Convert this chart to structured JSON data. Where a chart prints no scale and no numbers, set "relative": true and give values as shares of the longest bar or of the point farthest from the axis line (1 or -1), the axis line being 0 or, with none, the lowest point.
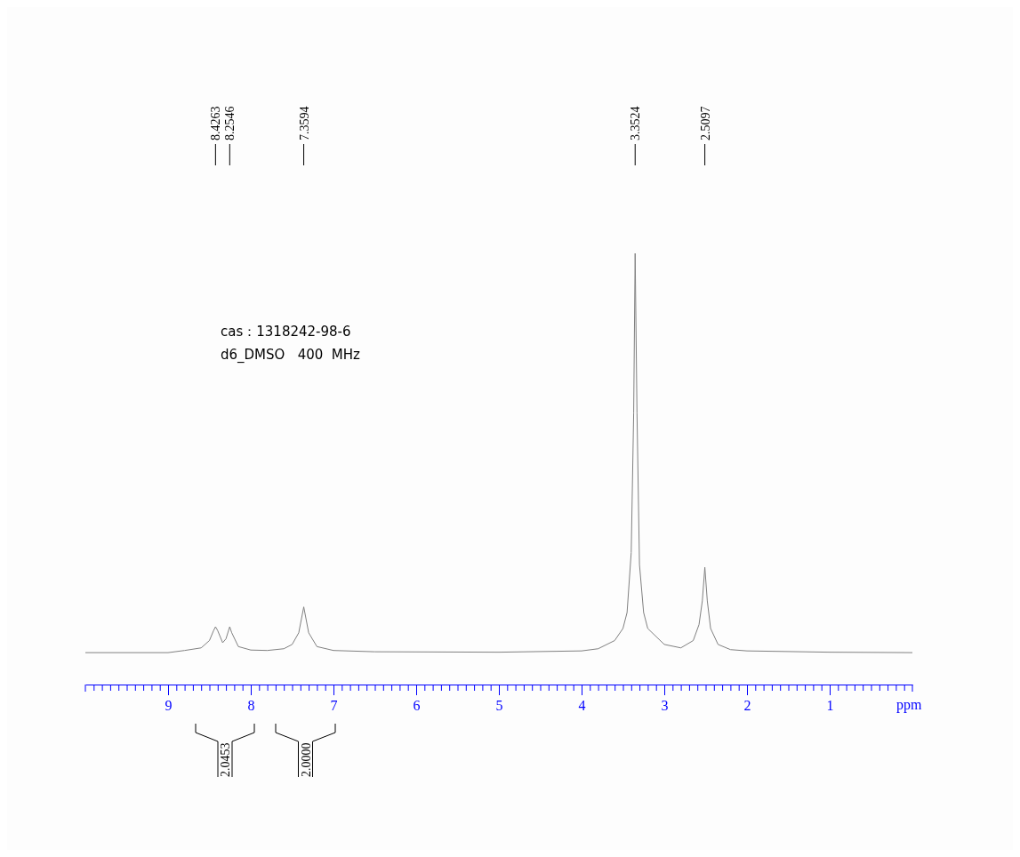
{
  "chart_data": {
    "type": "line",
    "relative": true,
    "xlabel": "ppm",
    "xlim": [
      10,
      0
    ],
    "xticks": [
      {
        "value": 9.9,
        "label": null
      },
      {
        "value": 9.8,
        "label": null
      },
      {
        "value": 9.7,
        "label": null
      },
      {
        "value": 9.6,
        "label": null
      },
      {
        "value": 9.5,
        "label": null
      },
      {
        "value": 9.4,
        "label": null
      },
      {
        "value": 9.3,
        "label": null
      },
      {
        "value": 9.2,
        "label": null
      },
      {
        "value": 9.1,
        "label": null
      },
      9,
      {
        "value": 8.9,
        "label": null
      },
      {
        "value": 8.8,
        "label": null
      },
      {
        "value": 8.7,
        "label": null
      },
      {
        "value": 8.6,
        "label": null
      },
      {
        "value": 8.5,
        "label": null
      },
      {
        "value": 8.4,
        "label": null
      },
      {
        "value": 8.3,
        "label": null
      },
      {
        "value": 8.2,
        "label": null
      },
      {
        "value": 8.1,
        "label": null
      },
      8,
      {
        "value": 7.9,
        "label": null
      },
      {
        "value": 7.8,
        "label": null
      },
      {
        "value": 7.7,
        "label": null
      },
      {
        "value": 7.6,
        "label": null
      },
      {
        "value": 7.5,
        "label": null
      },
      {
        "value": 7.4,
        "label": null
      },
      {
        "value": 7.3,
        "label": null
      },
      {
        "value": 7.2,
        "label": null
      },
      {
        "value": 7.1,
        "label": null
      },
      7,
      {
        "value": 6.9,
        "label": null
      },
      {
        "value": 6.8,
        "label": null
      },
      {
        "value": 6.7,
        "label": null
      },
      {
        "value": 6.6,
        "label": null
      },
      {
        "value": 6.5,
        "label": null
      },
      {
        "value": 6.4,
        "label": null
      },
      {
        "value": 6.3,
        "label": null
      },
      {
        "value": 6.2,
        "label": null
      },
      {
        "value": 6.1,
        "label": null
      },
      6,
      {
        "value": 5.9,
        "label": null
      },
      {
        "value": 5.8,
        "label": null
      },
      {
        "value": 5.7,
        "label": null
      },
      {
        "value": 5.6,
        "label": null
      },
      {
        "value": 5.5,
        "label": null
      },
      {
        "value": 5.4,
        "label": null
      },
      {
        "value": 5.3,
        "label": null
      },
      {
        "value": 5.2,
        "label": null
      },
      {
        "value": 5.1,
        "label": null
      },
      5,
      {
        "value": 4.9,
        "label": null
      },
      {
        "value": 4.8,
        "label": null
      },
      {
        "value": 4.7,
        "label": null
      },
      {
        "value": 4.6,
        "label": null
      },
      {
        "value": 4.5,
        "label": null
      },
      {
        "value": 4.4,
        "label": null
      },
      {
        "value": 4.3,
        "label": null
      },
      {
        "value": 4.2,
        "label": null
      },
      {
        "value": 4.1,
        "label": null
      },
      4,
      {
        "value": 3.9,
        "label": null
      },
      {
        "value": 3.8,
        "label": null
      },
      {
        "value": 3.7,
        "label": null
      },
      {
        "value": 3.6,
        "label": null
      },
      {
        "value": 3.5,
        "label": null
      },
      {
        "value": 3.4,
        "label": null
      },
      {
        "value": 3.3,
        "label": null
      },
      {
        "value": 3.2,
        "label": null
      },
      {
        "value": 3.1,
        "label": null
      },
      3,
      {
        "value": 2.9,
        "label": null
      },
      {
        "value": 2.8,
        "label": null
      },
      {
        "value": 2.7,
        "label": null
      },
      {
        "value": 2.6,
        "label": null
      },
      {
        "value": 2.5,
        "label": null
      },
      {
        "value": 2.4,
        "label": null
      },
      {
        "value": 2.3,
        "label": null
      },
      {
        "value": 2.2,
        "label": null
      },
      {
        "value": 2.1,
        "label": null
      },
      2,
      {
        "value": 1.9,
        "label": null
      },
      {
        "value": 1.8,
        "label": null
      },
      {
        "value": 1.7,
        "label": null
      },
      {
        "value": 1.6,
        "label": null
      },
      {
        "value": 1.5,
        "label": null
      },
      {
        "value": 1.4,
        "label": null
      },
      {
        "value": 1.3,
        "label": null
      },
      {
        "value": 1.2,
        "label": null
      },
      {
        "value": 1.1,
        "label": null
      },
      1,
      {
        "value": 0.9,
        "label": null
      },
      {
        "value": 0.8,
        "label": null
      },
      {
        "value": 0.7,
        "label": null
      },
      {
        "value": 0.6,
        "label": null
      },
      {
        "value": 0.5,
        "label": null
      },
      {
        "value": 0.4,
        "label": null
      },
      {
        "value": 0.3,
        "label": null
      },
      {
        "value": 0.2,
        "label": null
      },
      {
        "value": 0.1,
        "label": null
      }
    ],
    "x": [
      10,
      9,
      8.8,
      8.6,
      8.5,
      8.45,
      8.4263,
      8.4,
      8.34,
      8.3,
      8.2546,
      8.23,
      8.15,
      8,
      7.8,
      7.6,
      7.5,
      7.42,
      7.3594,
      7.3,
      7.2,
      7,
      6.5,
      5,
      4,
      3.8,
      3.6,
      3.5,
      3.45,
      3.4,
      3.37,
      3.3524,
      3.33,
      3.3,
      3.25,
      3.2,
      3,
      2.8,
      2.65,
      2.58,
      2.54,
      2.5097,
      2.48,
      2.44,
      2.35,
      2.2,
      2,
      1,
      0
    ],
    "series": [
      {
        "color": "#808080",
        "values": [
          0.074,
          0.074,
          0.079,
          0.085,
          0.102,
          0.125,
          0.134,
          0.125,
          0.097,
          0.106,
          0.134,
          0.12,
          0.088,
          0.08,
          0.079,
          0.083,
          0.093,
          0.12,
          0.18,
          0.12,
          0.088,
          0.079,
          0.076,
          0.075,
          0.078,
          0.083,
          0.102,
          0.13,
          0.167,
          0.306,
          0.63,
          1,
          0.63,
          0.278,
          0.167,
          0.13,
          0.093,
          0.085,
          0.102,
          0.139,
          0.194,
          0.272,
          0.194,
          0.13,
          0.093,
          0.081,
          0.078,
          0.075,
          0.074
        ]
      }
    ],
    "marker": "none",
    "line_style": "solid",
    "annotations": [
      "2.0453",
      "2.0000",
      {
        "text": "8.4263",
        "x": 8.4263
      },
      {
        "text": "8.2546",
        "x": 8.2546
      },
      {
        "text": "7.3594",
        "x": 7.3594
      },
      {
        "text": "3.3524",
        "x": 3.3524
      },
      {
        "text": "2.5097",
        "x": 2.5097
      },
      "cas：1318242-98-6",
      "d6_DMSO   400  MHz"
    ]
  }
}
